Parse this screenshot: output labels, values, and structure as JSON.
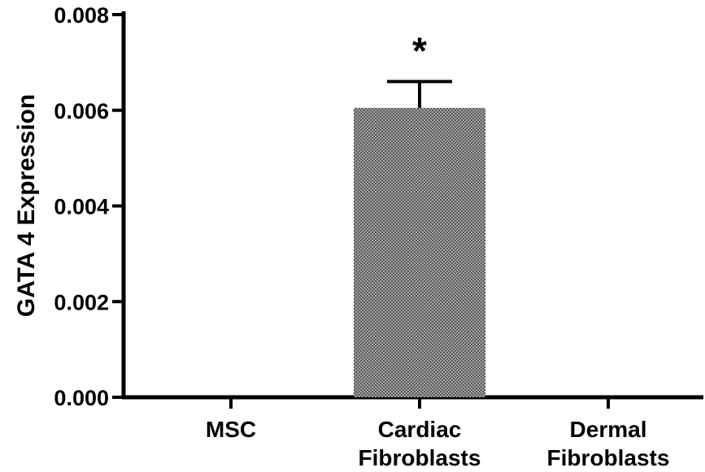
{
  "chart_data": {
    "type": "bar",
    "categories": [
      [
        "MSC"
      ],
      [
        "Cardiac",
        "Fibroblasts"
      ],
      [
        "Dermal",
        "Fibroblasts"
      ]
    ],
    "values": [
      0.0,
      0.00605,
      0.0
    ],
    "errors": [
      null,
      0.00055,
      null
    ],
    "annotations": [
      "",
      "*",
      ""
    ],
    "ylabel": "GATA 4 Expression",
    "xlabel": "",
    "title": "",
    "ylim": [
      0,
      0.008
    ],
    "yticks": [
      "0.000",
      "0.002",
      "0.004",
      "0.006",
      "0.008"
    ],
    "grid": false,
    "bar_fill": "crosshatch-gray",
    "colors": {
      "axis": "#000000",
      "bar": "#8a8a8a"
    }
  }
}
